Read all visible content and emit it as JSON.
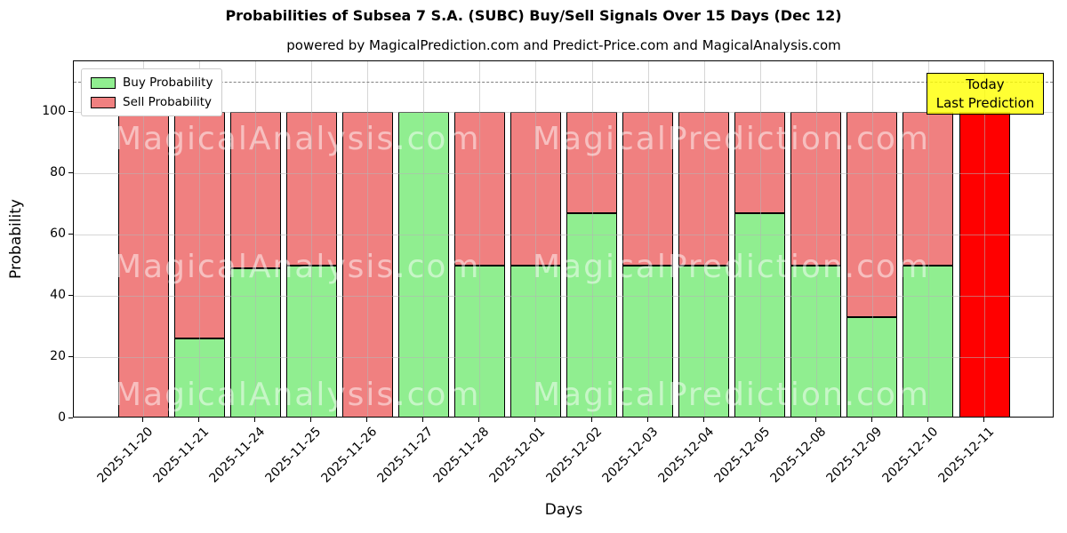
{
  "figure": {
    "title": "Probabilities of Subsea 7 S.A. (SUBC) Buy/Sell Signals Over 15 Days (Dec 12)",
    "subtitle": "powered by MagicalPrediction.com and Predict-Price.com and MagicalAnalysis.com"
  },
  "annotation_box": {
    "line1": "Today",
    "line2": "Last Prediction",
    "bg_color": "#ffff00"
  },
  "watermarks": {
    "left_text": "MagicalAnalysis.com",
    "right_text": "MagicalPrediction.com"
  },
  "colors": {
    "buy": "#90ee90",
    "sell": "#f08080",
    "today_sell": "#ff0000",
    "bar_edge": "#000000",
    "grid": "#b0b0b0",
    "dashed_line": "#808080",
    "axis": "#000000"
  },
  "chart_data": {
    "type": "bar",
    "stacked": true,
    "title": "Probabilities of Subsea 7 S.A. (SUBC) Buy/Sell Signals Over 15 Days (Dec 12)",
    "subtitle": "powered by MagicalPrediction.com and Predict-Price.com and MagicalAnalysis.com",
    "xlabel": "Days",
    "ylabel": "Probability",
    "ylim": [
      0,
      116.5
    ],
    "yticks": [
      0,
      20,
      40,
      60,
      80,
      100
    ],
    "grid": true,
    "dashed_line_y": 110,
    "legend_position": "upper-left",
    "legend": [
      {
        "label": "Buy Probability",
        "color": "#90ee90"
      },
      {
        "label": "Sell Probability",
        "color": "#f08080"
      }
    ],
    "categories": [
      "2025-11-20",
      "2025-11-21",
      "2025-11-24",
      "2025-11-25",
      "2025-11-26",
      "2025-11-27",
      "2025-11-28",
      "2025-12-01",
      "2025-12-02",
      "2025-12-03",
      "2025-12-04",
      "2025-12-05",
      "2025-12-08",
      "2025-12-09",
      "2025-12-10",
      "2025-12-11"
    ],
    "series": [
      {
        "name": "Buy Probability",
        "values": [
          0,
          26,
          49,
          50,
          0,
          100,
          50,
          50,
          67,
          50,
          50,
          67,
          50,
          33,
          50,
          0
        ]
      },
      {
        "name": "Sell Probability",
        "values": [
          100,
          74,
          51,
          50,
          100,
          0,
          50,
          50,
          33,
          50,
          50,
          33,
          50,
          67,
          50,
          100
        ]
      }
    ],
    "today_index": 15,
    "today_bar_color": "#ff0000"
  }
}
